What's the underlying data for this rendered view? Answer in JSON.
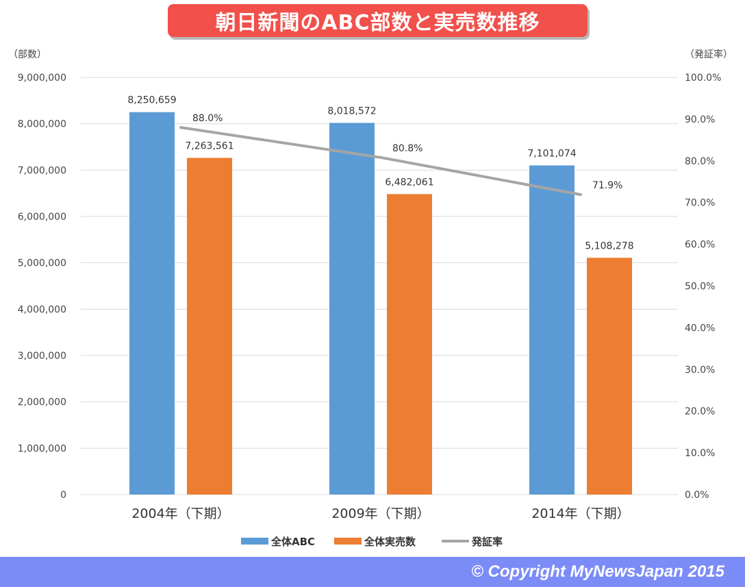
{
  "header": {
    "title": "朝日新聞のABC部数と実売数推移"
  },
  "footer": {
    "copyright": "© Copyright   MyNewsJapan 2015"
  },
  "chart_data": {
    "type": "bar",
    "title": "朝日新聞のABC部数と実売数推移",
    "categories": [
      "2004年（下期）",
      "2009年（下期）",
      "2014年（下期）"
    ],
    "ylabel": "（部数）",
    "y2label": "（発証率）",
    "ylim": [
      0,
      9000000
    ],
    "y2lim": [
      0,
      100
    ],
    "yticks": [
      "0",
      "1,000,000",
      "2,000,000",
      "3,000,000",
      "4,000,000",
      "5,000,000",
      "6,000,000",
      "7,000,000",
      "8,000,000",
      "9,000,000"
    ],
    "y2ticks": [
      "0.0%",
      "10.0%",
      "20.0%",
      "30.0%",
      "40.0%",
      "50.0%",
      "60.0%",
      "70.0%",
      "80.0%",
      "90.0%",
      "100.0%"
    ],
    "grid": true,
    "legend_position": "bottom",
    "series": [
      {
        "name": "全体ABC",
        "type": "bar",
        "color": "#5b9bd5",
        "values": [
          8250659,
          8018572,
          7101074
        ],
        "labels": [
          "8,250,659",
          "8,018,572",
          "7,101,074"
        ]
      },
      {
        "name": "全体実売数",
        "type": "bar",
        "color": "#ed7d31",
        "values": [
          7263561,
          6482061,
          5108278
        ],
        "labels": [
          "7,263,561",
          "6,482,061",
          "5,108,278"
        ]
      },
      {
        "name": "発証率",
        "type": "line",
        "axis": "secondary",
        "color": "#a5a5a5",
        "values": [
          88.0,
          80.8,
          71.9
        ],
        "labels": [
          "88.0%",
          "80.8%",
          "71.9%"
        ]
      }
    ]
  }
}
